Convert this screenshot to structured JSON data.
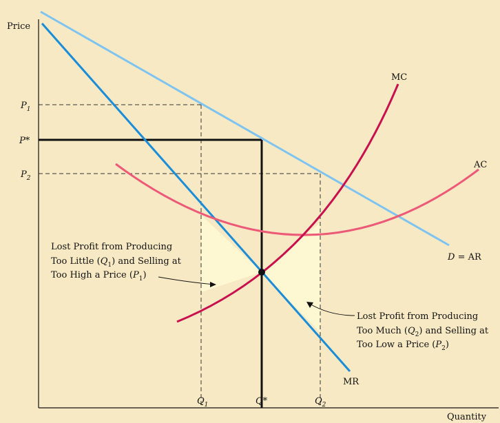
{
  "axes": {
    "y_label": "Price",
    "x_label": "Quantity"
  },
  "price_labels": {
    "p1": {
      "main": "P",
      "sub": "1"
    },
    "pstar": {
      "main": "P*"
    },
    "p2": {
      "main": "P",
      "sub": "2"
    }
  },
  "quantity_labels": {
    "q1": {
      "main": "Q",
      "sub": "1"
    },
    "qstar": {
      "main": "Q*"
    },
    "q2": {
      "main": "Q",
      "sub": "2"
    }
  },
  "curves": {
    "mc": "MC",
    "ac": "AC",
    "demand": {
      "d": "D",
      "rest": " = AR"
    },
    "mr": "MR"
  },
  "annotations": {
    "too_little": {
      "line1": "Lost Profit from Producing",
      "line2_pre": "Too Little (",
      "line2_q": "Q",
      "line2_sub": "1",
      "line2_post": ") and Selling at",
      "line3_pre": "Too High a Price (",
      "line3_p": "P",
      "line3_sub": "1",
      "line3_post": ")"
    },
    "too_much": {
      "line1": "Lost Profit from Producing",
      "line2_pre": "Too Much (",
      "line2_q": "Q",
      "line2_sub": "2",
      "line2_post": ") and Selling at",
      "line3_pre": "Too Low a Price (",
      "line3_p": "P",
      "line3_sub": "2",
      "line3_post": ")"
    }
  },
  "colors": {
    "background": "#f7e9c3",
    "demand": "#7fc4f0",
    "mr": "#1a8cd8",
    "mc": "#c8104e",
    "ac": "#ec5a78",
    "profit_region": "#fdf8d2",
    "guide": "#333333",
    "optimum": "#111111"
  }
}
